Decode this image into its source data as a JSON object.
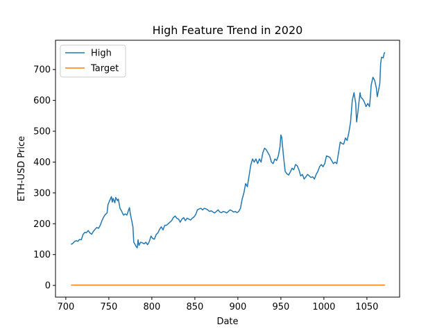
{
  "chart_data": {
    "type": "line",
    "title": "High Feature Trend in 2020",
    "xlabel": "Date",
    "ylabel": "ETH-USD Price",
    "xlim": [
      688,
      1088
    ],
    "ylim": [
      -38,
      795
    ],
    "x_ticks": [
      700,
      750,
      800,
      850,
      900,
      950,
      1000,
      1050
    ],
    "y_ticks": [
      0,
      100,
      200,
      300,
      400,
      500,
      600,
      700
    ],
    "grid": false,
    "legend_position": "top-left",
    "series": [
      {
        "name": "High",
        "color": "#1f77b4",
        "points": [
          [
            706,
            133
          ],
          [
            708,
            136
          ],
          [
            710,
            142
          ],
          [
            712,
            145
          ],
          [
            714,
            143
          ],
          [
            716,
            149
          ],
          [
            718,
            148
          ],
          [
            720,
            165
          ],
          [
            722,
            172
          ],
          [
            724,
            171
          ],
          [
            726,
            178
          ],
          [
            728,
            170
          ],
          [
            730,
            166
          ],
          [
            732,
            175
          ],
          [
            734,
            182
          ],
          [
            736,
            188
          ],
          [
            738,
            185
          ],
          [
            740,
            195
          ],
          [
            742,
            210
          ],
          [
            744,
            222
          ],
          [
            746,
            230
          ],
          [
            748,
            235
          ],
          [
            749,
            262
          ],
          [
            751,
            275
          ],
          [
            753,
            288
          ],
          [
            754,
            270
          ],
          [
            755,
            282
          ],
          [
            757,
            268
          ],
          [
            758,
            285
          ],
          [
            760,
            275
          ],
          [
            761,
            280
          ],
          [
            763,
            250
          ],
          [
            765,
            240
          ],
          [
            767,
            228
          ],
          [
            769,
            232
          ],
          [
            771,
            228
          ],
          [
            773,
            245
          ],
          [
            774,
            252
          ],
          [
            775,
            232
          ],
          [
            776,
            218
          ],
          [
            777,
            205
          ],
          [
            778,
            190
          ],
          [
            779,
            140
          ],
          [
            780,
            135
          ],
          [
            781,
            130
          ],
          [
            782,
            125
          ],
          [
            783,
            122
          ],
          [
            784,
            148
          ],
          [
            785,
            130
          ],
          [
            787,
            140
          ],
          [
            789,
            138
          ],
          [
            791,
            135
          ],
          [
            793,
            140
          ],
          [
            795,
            132
          ],
          [
            797,
            142
          ],
          [
            799,
            160
          ],
          [
            801,
            152
          ],
          [
            803,
            150
          ],
          [
            805,
            165
          ],
          [
            807,
            170
          ],
          [
            809,
            182
          ],
          [
            811,
            190
          ],
          [
            813,
            180
          ],
          [
            815,
            195
          ],
          [
            817,
            195
          ],
          [
            819,
            200
          ],
          [
            821,
            205
          ],
          [
            823,
            210
          ],
          [
            825,
            220
          ],
          [
            827,
            225
          ],
          [
            829,
            218
          ],
          [
            831,
            215
          ],
          [
            833,
            205
          ],
          [
            835,
            215
          ],
          [
            837,
            220
          ],
          [
            839,
            210
          ],
          [
            841,
            218
          ],
          [
            843,
            215
          ],
          [
            845,
            212
          ],
          [
            847,
            218
          ],
          [
            849,
            222
          ],
          [
            851,
            230
          ],
          [
            853,
            245
          ],
          [
            855,
            248
          ],
          [
            857,
            250
          ],
          [
            859,
            245
          ],
          [
            861,
            250
          ],
          [
            863,
            248
          ],
          [
            865,
            245
          ],
          [
            867,
            240
          ],
          [
            869,
            242
          ],
          [
            871,
            238
          ],
          [
            873,
            235
          ],
          [
            875,
            240
          ],
          [
            877,
            245
          ],
          [
            879,
            238
          ],
          [
            881,
            236
          ],
          [
            883,
            240
          ],
          [
            885,
            238
          ],
          [
            887,
            235
          ],
          [
            889,
            240
          ],
          [
            891,
            245
          ],
          [
            893,
            242
          ],
          [
            895,
            238
          ],
          [
            897,
            240
          ],
          [
            899,
            236
          ],
          [
            901,
            240
          ],
          [
            903,
            250
          ],
          [
            905,
            280
          ],
          [
            907,
            300
          ],
          [
            909,
            330
          ],
          [
            911,
            320
          ],
          [
            913,
            355
          ],
          [
            915,
            390
          ],
          [
            917,
            410
          ],
          [
            919,
            400
          ],
          [
            921,
            410
          ],
          [
            923,
            395
          ],
          [
            925,
            410
          ],
          [
            927,
            400
          ],
          [
            929,
            430
          ],
          [
            931,
            445
          ],
          [
            933,
            440
          ],
          [
            935,
            430
          ],
          [
            937,
            420
          ],
          [
            939,
            400
          ],
          [
            941,
            395
          ],
          [
            943,
            410
          ],
          [
            945,
            405
          ],
          [
            947,
            420
          ],
          [
            949,
            450
          ],
          [
            950,
            488
          ],
          [
            951,
            480
          ],
          [
            952,
            450
          ],
          [
            953,
            420
          ],
          [
            954,
            395
          ],
          [
            955,
            370
          ],
          [
            957,
            362
          ],
          [
            959,
            358
          ],
          [
            961,
            368
          ],
          [
            963,
            380
          ],
          [
            965,
            375
          ],
          [
            967,
            392
          ],
          [
            969,
            388
          ],
          [
            971,
            375
          ],
          [
            973,
            355
          ],
          [
            975,
            360
          ],
          [
            977,
            345
          ],
          [
            979,
            352
          ],
          [
            981,
            360
          ],
          [
            983,
            355
          ],
          [
            985,
            350
          ],
          [
            987,
            352
          ],
          [
            989,
            345
          ],
          [
            991,
            360
          ],
          [
            993,
            370
          ],
          [
            995,
            385
          ],
          [
            997,
            392
          ],
          [
            999,
            385
          ],
          [
            1001,
            395
          ],
          [
            1003,
            420
          ],
          [
            1005,
            418
          ],
          [
            1007,
            415
          ],
          [
            1009,
            405
          ],
          [
            1011,
            395
          ],
          [
            1013,
            400
          ],
          [
            1015,
            395
          ],
          [
            1017,
            430
          ],
          [
            1019,
            465
          ],
          [
            1021,
            460
          ],
          [
            1023,
            458
          ],
          [
            1025,
            478
          ],
          [
            1027,
            470
          ],
          [
            1029,
            495
          ],
          [
            1031,
            530
          ],
          [
            1033,
            600
          ],
          [
            1035,
            625
          ],
          [
            1037,
            590
          ],
          [
            1038,
            530
          ],
          [
            1039,
            550
          ],
          [
            1041,
            600
          ],
          [
            1042,
            625
          ],
          [
            1043,
            610
          ],
          [
            1045,
            605
          ],
          [
            1047,
            595
          ],
          [
            1049,
            580
          ],
          [
            1051,
            590
          ],
          [
            1053,
            580
          ],
          [
            1054,
            610
          ],
          [
            1055,
            650
          ],
          [
            1057,
            675
          ],
          [
            1059,
            665
          ],
          [
            1061,
            640
          ],
          [
            1062,
            612
          ],
          [
            1063,
            625
          ],
          [
            1065,
            655
          ],
          [
            1066,
            720
          ],
          [
            1067,
            740
          ],
          [
            1069,
            738
          ],
          [
            1070,
            752
          ],
          [
            1071,
            756
          ]
        ]
      },
      {
        "name": "Target",
        "color": "#ff7f0e",
        "points": [
          [
            706,
            1
          ],
          [
            1071,
            1
          ]
        ]
      }
    ]
  }
}
